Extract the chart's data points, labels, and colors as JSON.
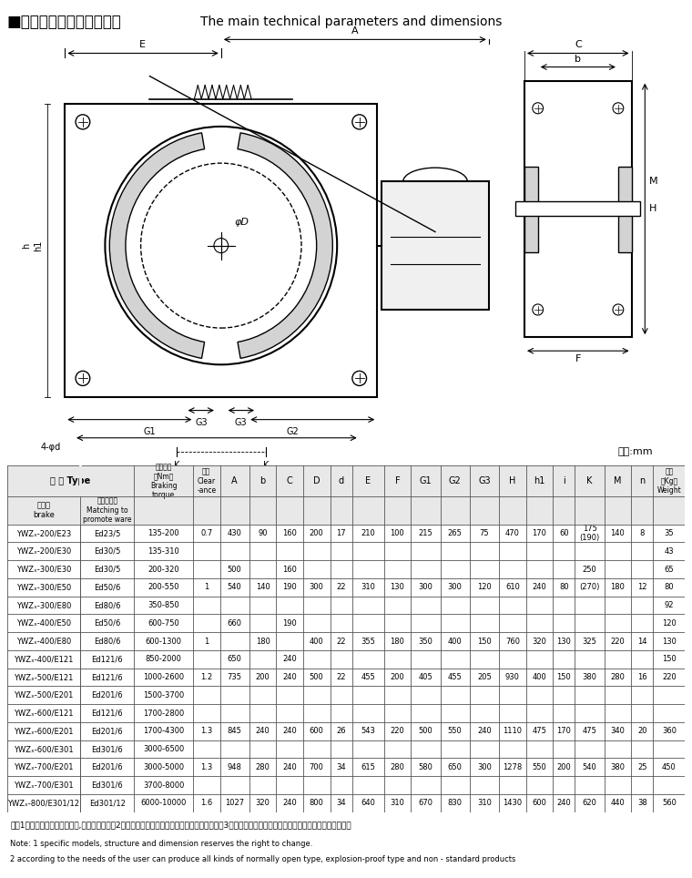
{
  "title_cn": "■主要技术参数及外形尺寸",
  "title_en": "  The main technical parameters and dimensions",
  "unit_text": "单位:mm",
  "header_row1": [
    "型 号 Type",
    "",
    "制动力矩\n（Nm）\nBraking\ntorque",
    "退距\nClear\n-ance",
    "A",
    "b",
    "C",
    "D",
    "d",
    "E",
    "F",
    "G1",
    "G2",
    "G3",
    "H",
    "h1",
    "i",
    "K",
    "M",
    "n",
    "重量\n（Kg）\nWeight"
  ],
  "header_row2_col0": "制动器\nbrake",
  "header_row2_col1": "匹配推动器\nMatching to\npromote ware",
  "col_widths": [
    1.5,
    1.1,
    1.2,
    0.55,
    0.6,
    0.55,
    0.55,
    0.55,
    0.45,
    0.65,
    0.55,
    0.6,
    0.6,
    0.6,
    0.55,
    0.55,
    0.45,
    0.6,
    0.55,
    0.45,
    0.65
  ],
  "rows": [
    [
      "YWZₓ-200/E23",
      "Ed23/5",
      "135-200",
      "0.7",
      "430",
      "90",
      "160",
      "200",
      "17",
      "210",
      "100",
      "215",
      "265",
      "75",
      "470",
      "170",
      "60",
      "175\n(190)",
      "140",
      "8",
      "35"
    ],
    [
      "YWZₓ-200/E30",
      "Ed30/5",
      "135-310",
      "",
      "",
      "",
      "",
      "",
      "",
      "",
      "",
      "",
      "",
      "",
      "",
      "",
      "",
      "",
      "",
      "",
      "43"
    ],
    [
      "YWZₓ-300/E30",
      "Ed30/5",
      "200-320",
      "",
      "500",
      "",
      "160",
      "",
      "",
      "",
      "",
      "",
      "",
      "",
      "",
      "",
      "",
      "250",
      "",
      "",
      "65"
    ],
    [
      "YWZₓ-300/E50",
      "Ed50/6",
      "200-550",
      "1",
      "540",
      "140",
      "190",
      "300",
      "22",
      "310",
      "130",
      "300",
      "300",
      "120",
      "610",
      "240",
      "80",
      "(270)",
      "180",
      "12",
      "80"
    ],
    [
      "YWZₓ-300/E80",
      "Ed80/6",
      "350-850",
      "",
      "",
      "",
      "",
      "",
      "",
      "",
      "",
      "",
      "",
      "",
      "",
      "",
      "",
      "",
      "",
      "",
      "92"
    ],
    [
      "YWZₓ-400/E50",
      "Ed50/6",
      "600-750",
      "",
      "660",
      "",
      "190",
      "",
      "",
      "",
      "",
      "",
      "",
      "",
      "",
      "",
      "",
      "",
      "",
      "",
      "120"
    ],
    [
      "YWZₓ-400/E80",
      "Ed80/6",
      "600-1300",
      "1",
      "",
      "180",
      "",
      "400",
      "22",
      "355",
      "180",
      "350",
      "400",
      "150",
      "760",
      "320",
      "130",
      "325",
      "220",
      "14",
      "130"
    ],
    [
      "YWZₓ-400/E121",
      "Ed121/6",
      "850-2000",
      "",
      "650",
      "",
      "240",
      "",
      "",
      "",
      "",
      "",
      "",
      "",
      "",
      "",
      "",
      "",
      "",
      "",
      "150"
    ],
    [
      "YWZₓ-500/E121",
      "Ed121/6",
      "1000-2600",
      "1.2",
      "735",
      "200",
      "240",
      "500",
      "22",
      "455",
      "200",
      "405",
      "455",
      "205",
      "930",
      "400",
      "150",
      "380",
      "280",
      "16",
      "220"
    ],
    [
      "YWZₓ-500/E201",
      "Ed201/6",
      "1500-3700",
      "",
      "",
      "",
      "",
      "",
      "",
      "",
      "",
      "",
      "",
      "",
      "",
      "",
      "",
      "",
      "",
      "",
      ""
    ],
    [
      "YWZₓ-600/E121",
      "Ed121/6",
      "1700-2800",
      "",
      "",
      "",
      "",
      "",
      "",
      "",
      "",
      "",
      "",
      "",
      "",
      "",
      "",
      "",
      "",
      "",
      ""
    ],
    [
      "YWZₓ-600/E201",
      "Ed201/6",
      "1700-4300",
      "1.3",
      "845",
      "240",
      "240",
      "600",
      "26",
      "543",
      "220",
      "500",
      "550",
      "240",
      "1110",
      "475",
      "170",
      "475",
      "340",
      "20",
      "360"
    ],
    [
      "YWZₓ-600/E301",
      "Ed301/6",
      "3000-6500",
      "",
      "",
      "",
      "",
      "",
      "",
      "",
      "",
      "",
      "",
      "",
      "",
      "",
      "",
      "",
      "",
      "",
      ""
    ],
    [
      "YWZₓ-700/E201",
      "Ed201/6",
      "3000-5000",
      "1.3",
      "948",
      "280",
      "240",
      "700",
      "34",
      "615",
      "280",
      "580",
      "650",
      "300",
      "1278",
      "550",
      "200",
      "540",
      "380",
      "25",
      "450"
    ],
    [
      "YWZₓ-700/E301",
      "Ed301/6",
      "3700-8000",
      "",
      "",
      "",
      "",
      "",
      "",
      "",
      "",
      "",
      "",
      "",
      "",
      "",
      "",
      "",
      "",
      "",
      ""
    ],
    [
      "YWZₓ-800/E301/12",
      "Ed301/12",
      "6000-10000",
      "1.6",
      "1027",
      "320",
      "240",
      "800",
      "34",
      "640",
      "310",
      "670",
      "830",
      "310",
      "1430",
      "600",
      "240",
      "620",
      "440",
      "38",
      "560"
    ]
  ],
  "note_cn": "注：1、如需括号内尺寸产品时,订货时需说明。2、具体型号、结构及外形尺寸保留更改的权利。3、根据用户需要可生产各种常开型、防爆型及非标产品。",
  "note_en1": "Note: 1 specific models, structure and dimension reserves the right to change.",
  "note_en2": "2 according to the needs of the user can produce all kinds of normally open type, explosion-proof type and non - standard products",
  "bg_color": "#ffffff",
  "header_bg": "#e8e8e8",
  "grid_color": "#555555",
  "text_color": "#000000"
}
